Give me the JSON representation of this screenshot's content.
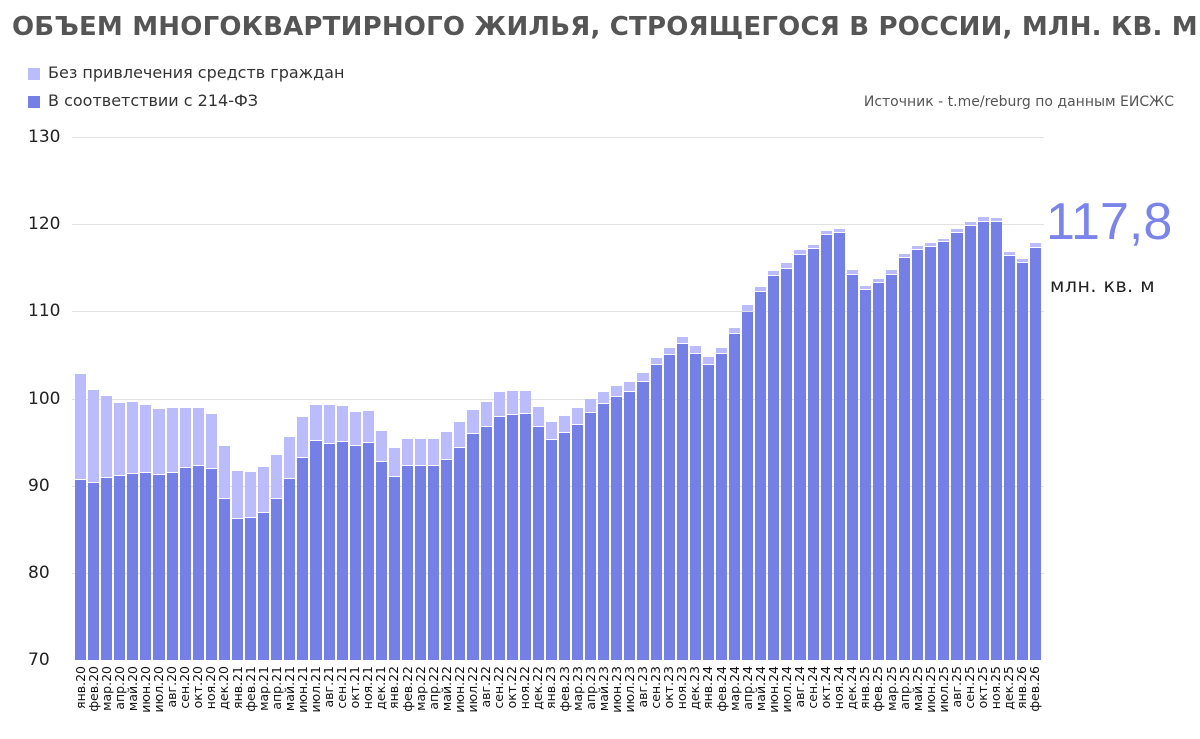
{
  "header": {
    "title": "ОБЪЕМ МНОГОКВАРТИРНОГО ЖИЛЬЯ, СТРОЯЩЕГОСЯ В РОССИИ, МЛН. КВ. М",
    "source": "Источник - t.me/reburg по данным ЕИСЖС"
  },
  "legend": [
    {
      "label": "Без привлечения средств граждан",
      "color": "#babcfb"
    },
    {
      "label": "В соответствии с 214-ФЗ",
      "color": "#7580e6"
    }
  ],
  "callout": {
    "value": "117,8",
    "unit": "млн. кв. м"
  },
  "colors": {
    "light": "#babcfb",
    "dark": "#7580e6",
    "callout": "#7b84ea"
  },
  "chart_data": {
    "type": "bar",
    "stacked": true,
    "title": "ОБЪЕМ МНОГОКВАРТИРНОГО ЖИЛЬЯ, СТРОЯЩЕГОСЯ В РОССИИ, МЛН. КВ. М",
    "xlabel": "",
    "ylabel": "",
    "ylim": [
      70,
      130
    ],
    "yticks": [
      70,
      80,
      90,
      100,
      110,
      120,
      130
    ],
    "grid": true,
    "legend_position": "top-left",
    "annotation": "117,8 млн. кв. м",
    "categories": [
      "янв.20",
      "фев.20",
      "мар.20",
      "апр.20",
      "май.20",
      "июн.20",
      "июл.20",
      "авг.20",
      "сен.20",
      "окт.20",
      "ноя.20",
      "дек.20",
      "янв.21",
      "фев.21",
      "мар.21",
      "апр.21",
      "май.21",
      "июн.21",
      "июл.21",
      "авг.21",
      "сен.21",
      "окт.21",
      "ноя.21",
      "дек.21",
      "янв.22",
      "фев.22",
      "мар.22",
      "апр.22",
      "май.22",
      "июн.22",
      "июл.22",
      "авг.22",
      "сен.22",
      "окт.22",
      "ноя.22",
      "дек.22",
      "янв.23",
      "фев.23",
      "мар.23",
      "апр.23",
      "май.23",
      "июн.23",
      "июл.23",
      "авг.23",
      "сен.23",
      "окт.23",
      "ноя.23",
      "дек.23",
      "янв.24",
      "фев.24",
      "мар.24",
      "апр.24",
      "май.24",
      "июн.24",
      "июл.24",
      "авг.24",
      "сен.24",
      "окт.24",
      "ноя.24",
      "дек.24",
      "янв.25",
      "фев.25",
      "мар.25",
      "апр.25",
      "май.25",
      "июн.25",
      "июл.25",
      "авг.25",
      "сен.25",
      "окт.25",
      "ноя.25",
      "дек.25",
      "янв.26",
      "фев.26"
    ],
    "series": [
      {
        "name": "В соответствии с 214-ФЗ",
        "color": "#7580e6",
        "values": [
          90.6,
          90.3,
          90.9,
          91.1,
          91.3,
          91.4,
          91.2,
          91.5,
          92.0,
          92.3,
          91.9,
          88.5,
          86.2,
          86.3,
          86.9,
          88.5,
          90.8,
          93.2,
          95.1,
          94.8,
          95.0,
          94.5,
          94.9,
          92.7,
          91.0,
          92.2,
          92.2,
          92.2,
          93.0,
          94.3,
          95.9,
          96.7,
          97.9,
          98.1,
          98.2,
          96.7,
          95.2,
          96.0,
          97.0,
          98.3,
          99.4,
          100.2,
          100.8,
          101.9,
          103.8,
          105.0,
          106.3,
          105.1,
          103.9,
          105.1,
          107.4,
          109.9,
          112.2,
          114.1,
          114.9,
          116.5,
          117.1,
          118.7,
          119.0,
          114.2,
          112.5,
          113.2,
          114.2,
          116.1,
          117.0,
          117.4,
          117.9,
          119.0,
          119.8,
          120.3,
          120.2,
          116.3,
          115.5,
          117.3
        ]
      },
      {
        "name": "Без привлечения средств граждан",
        "color": "#babcfb",
        "values": [
          12.2,
          10.7,
          9.4,
          8.4,
          8.3,
          7.8,
          7.6,
          7.4,
          6.9,
          6.6,
          6.3,
          6.1,
          5.5,
          5.3,
          5.2,
          5.0,
          4.8,
          4.7,
          4.2,
          4.4,
          4.1,
          4.0,
          3.7,
          3.6,
          3.3,
          3.2,
          3.2,
          3.1,
          3.1,
          3.0,
          2.8,
          2.9,
          2.9,
          2.8,
          2.7,
          2.3,
          2.1,
          2.0,
          1.9,
          1.7,
          1.3,
          1.2,
          1.1,
          1.0,
          0.9,
          0.8,
          0.8,
          0.9,
          0.9,
          0.7,
          0.7,
          0.8,
          0.6,
          0.5,
          0.6,
          0.5,
          0.5,
          0.5,
          0.5,
          0.5,
          0.4,
          0.5,
          0.5,
          0.5,
          0.5,
          0.4,
          0.4,
          0.4,
          0.5,
          0.5,
          0.5,
          0.5,
          0.5,
          0.5
        ]
      }
    ],
    "totals": [
      102.8,
      101.0,
      100.3,
      99.5,
      99.6,
      99.2,
      98.8,
      98.9,
      98.9,
      98.9,
      98.2,
      94.6,
      91.7,
      91.6,
      92.1,
      93.5,
      95.6,
      97.9,
      99.3,
      99.2,
      99.1,
      98.5,
      98.6,
      96.3,
      94.3,
      95.4,
      95.4,
      95.3,
      96.1,
      97.3,
      98.7,
      99.6,
      100.8,
      100.9,
      100.9,
      99.0,
      97.3,
      98.0,
      98.9,
      100.0,
      100.7,
      101.4,
      101.9,
      102.9,
      104.7,
      105.8,
      107.1,
      106.0,
      104.8,
      105.8,
      108.1,
      110.7,
      112.8,
      114.6,
      115.5,
      117.0,
      117.6,
      119.2,
      119.5,
      114.7,
      112.9,
      113.7,
      114.7,
      116.6,
      117.5,
      117.8,
      118.3,
      119.4,
      120.3,
      120.8,
      120.7,
      116.8,
      116.0,
      117.8
    ]
  }
}
